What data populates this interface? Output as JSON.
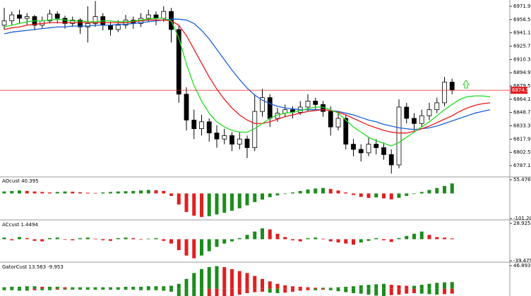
{
  "chart_data": [
    {
      "type": "candlestick",
      "ylim": [
        6774.9,
        6977.6
      ],
      "yticks": [
        {
          "value": 6971.9,
          "label": "6971.90"
        },
        {
          "value": 6956.5,
          "label": "6956.50"
        },
        {
          "value": 6941.1,
          "label": "6941.10"
        },
        {
          "value": 6925.7,
          "label": "6925.70"
        },
        {
          "value": 6910.3,
          "label": "6910.30"
        },
        {
          "value": 6894.9,
          "label": "6894.90"
        },
        {
          "value": 6879.5,
          "label": "6879.50"
        },
        {
          "value": 6864.1,
          "label": "6864.10"
        },
        {
          "value": 6848.7,
          "label": "6848.70"
        },
        {
          "value": 6833.3,
          "label": "6833.30"
        },
        {
          "value": 6817.9,
          "label": "6817.90"
        },
        {
          "value": 6802.5,
          "label": "6802.50"
        },
        {
          "value": 6787.1,
          "label": "6787.10"
        }
      ],
      "current_price": 6874.53,
      "up_color": "#ffffff",
      "down_color": "#000000",
      "ohlc": [
        [
          6950,
          6970,
          6945,
          6955
        ],
        [
          6955,
          6966,
          6950,
          6962
        ],
        [
          6962,
          6968,
          6952,
          6958
        ],
        [
          6958,
          6964,
          6950,
          6960
        ],
        [
          6960,
          6962,
          6944,
          6950
        ],
        [
          6950,
          6960,
          6946,
          6955
        ],
        [
          6955,
          6968,
          6952,
          6963
        ],
        [
          6963,
          6966,
          6952,
          6958
        ],
        [
          6958,
          6961,
          6946,
          6952
        ],
        [
          6952,
          6960,
          6948,
          6956
        ],
        [
          6956,
          6958,
          6940,
          6948
        ],
        [
          6948,
          6972,
          6930,
          6952
        ],
        [
          6952,
          6978,
          6948,
          6960
        ],
        [
          6960,
          6964,
          6944,
          6950
        ],
        [
          6950,
          6954,
          6938,
          6945
        ],
        [
          6945,
          6956,
          6942,
          6950
        ],
        [
          6950,
          6962,
          6946,
          6956
        ],
        [
          6956,
          6960,
          6946,
          6952
        ],
        [
          6952,
          6964,
          6948,
          6958
        ],
        [
          6958,
          6968,
          6954,
          6962
        ],
        [
          6962,
          6966,
          6950,
          6958
        ],
        [
          6958,
          6972,
          6954,
          6966
        ],
        [
          6966,
          6970,
          6930,
          6945
        ],
        [
          6945,
          6950,
          6860,
          6870
        ],
        [
          6870,
          6878,
          6828,
          6840
        ],
        [
          6840,
          6852,
          6818,
          6830
        ],
        [
          6830,
          6846,
          6822,
          6838
        ],
        [
          6838,
          6842,
          6815,
          6825
        ],
        [
          6825,
          6834,
          6808,
          6818
        ],
        [
          6818,
          6830,
          6812,
          6822
        ],
        [
          6822,
          6826,
          6804,
          6812
        ],
        [
          6812,
          6826,
          6806,
          6818
        ],
        [
          6818,
          6822,
          6796,
          6808
        ],
        [
          6808,
          6870,
          6804,
          6850
        ],
        [
          6850,
          6876,
          6844,
          6866
        ],
        [
          6866,
          6870,
          6832,
          6842
        ],
        [
          6842,
          6854,
          6838,
          6848
        ],
        [
          6848,
          6858,
          6844,
          6852
        ],
        [
          6852,
          6856,
          6842,
          6849
        ],
        [
          6849,
          6862,
          6846,
          6855
        ],
        [
          6855,
          6870,
          6850,
          6862
        ],
        [
          6862,
          6866,
          6852,
          6858
        ],
        [
          6858,
          6862,
          6844,
          6850
        ],
        [
          6850,
          6856,
          6822,
          6832
        ],
        [
          6832,
          6850,
          6828,
          6842
        ],
        [
          6842,
          6846,
          6806,
          6812
        ],
        [
          6812,
          6818,
          6798,
          6806
        ],
        [
          6806,
          6812,
          6792,
          6802
        ],
        [
          6802,
          6820,
          6798,
          6812
        ],
        [
          6812,
          6818,
          6800,
          6808
        ],
        [
          6808,
          6814,
          6794,
          6800
        ],
        [
          6800,
          6806,
          6778,
          6788
        ],
        [
          6788,
          6864,
          6784,
          6855
        ],
        [
          6855,
          6860,
          6836,
          6842
        ],
        [
          6842,
          6848,
          6828,
          6836
        ],
        [
          6836,
          6852,
          6832,
          6845
        ],
        [
          6845,
          6860,
          6840,
          6852
        ],
        [
          6852,
          6866,
          6848,
          6860
        ],
        [
          6860,
          6890,
          6856,
          6884
        ],
        [
          6884,
          6888,
          6870,
          6874.53
        ]
      ],
      "series": [
        {
          "color": "#1a5fd8",
          "values": [
            6940,
            6942,
            6943,
            6944,
            6945,
            6946,
            6947,
            6948,
            6948,
            6949,
            6949,
            6949,
            6950,
            6950,
            6950,
            6951,
            6951,
            6952,
            6953,
            6954,
            6955,
            6956,
            6957,
            6957,
            6956,
            6952,
            6944,
            6934,
            6922,
            6910,
            6898,
            6887,
            6877,
            6869,
            6863,
            6859,
            6856,
            6854,
            6853,
            6852,
            6852,
            6852,
            6852,
            6851,
            6850,
            6848,
            6846,
            6843,
            6840,
            6838,
            6835,
            6833,
            6831,
            6830,
            6829,
            6830,
            6831,
            6833,
            6836,
            6839,
            6842,
            6845,
            6848,
            6850,
            6852
          ]
        },
        {
          "color": "#e8191b",
          "values": [
            6945,
            6947,
            6948,
            6950,
            6951,
            6952,
            6953,
            6953,
            6953,
            6953,
            6953,
            6953,
            6953,
            6953,
            6953,
            6953,
            6953,
            6954,
            6955,
            6956,
            6956,
            6956,
            6955,
            6950,
            6938,
            6922,
            6906,
            6890,
            6876,
            6864,
            6854,
            6846,
            6840,
            6836,
            6836,
            6838,
            6841,
            6844,
            6846,
            6848,
            6850,
            6851,
            6852,
            6851,
            6849,
            6846,
            6842,
            6838,
            6834,
            6831,
            6828,
            6826,
            6825,
            6825,
            6827,
            6830,
            6833,
            6837,
            6841,
            6845,
            6850,
            6854,
            6857,
            6859,
            6860
          ]
        },
        {
          "color": "#22dd22",
          "values": [
            6948,
            6950,
            6952,
            6954,
            6955,
            6955,
            6956,
            6957,
            6956,
            6955,
            6955,
            6954,
            6954,
            6955,
            6955,
            6954,
            6954,
            6955,
            6956,
            6957,
            6958,
            6958,
            6955,
            6935,
            6905,
            6880,
            6862,
            6848,
            6838,
            6832,
            6828,
            6826,
            6826,
            6830,
            6836,
            6842,
            6846,
            6848,
            6849,
            6851,
            6853,
            6855,
            6855,
            6852,
            6848,
            6840,
            6832,
            6826,
            6820,
            6816,
            6813,
            6810,
            6814,
            6820,
            6826,
            6832,
            6838,
            6845,
            6852,
            6858,
            6864,
            6867,
            6868,
            6868,
            6867
          ]
        }
      ]
    },
    {
      "type": "histogram",
      "title": "AOcust 40.395",
      "ylim": [
        -101.205,
        55.476
      ],
      "yticks": [
        55.476,
        -101.205
      ],
      "up_color": "#1c8c1c",
      "down_color": "#e02020",
      "values": [
        8,
        10,
        12,
        10,
        8,
        6,
        4,
        6,
        8,
        7,
        5,
        3,
        2,
        4,
        6,
        8,
        9,
        10,
        12,
        14,
        13,
        10,
        -10,
        -45,
        -75,
        -90,
        -95,
        -92,
        -85,
        -78,
        -70,
        -60,
        -48,
        -35,
        -25,
        -15,
        -8,
        -2,
        4,
        10,
        16,
        20,
        22,
        18,
        12,
        4,
        -6,
        -14,
        -18,
        -16,
        -20,
        -24,
        -18,
        -10,
        -2,
        6,
        14,
        22,
        30,
        40.395
      ]
    },
    {
      "type": "histogram",
      "title": "ACcust 1.4494",
      "ylim": [
        -39.4791,
        28.9253
      ],
      "yticks": [
        28.9253,
        -39.4791
      ],
      "up_color": "#1c8c1c",
      "down_color": "#e02020",
      "values": [
        3,
        -2,
        4,
        2,
        -3,
        -4,
        2,
        3,
        -1,
        -2,
        2,
        3,
        1,
        -2,
        -3,
        2,
        3,
        2,
        -1,
        1,
        2,
        -3,
        -8,
        -20,
        -30,
        -35,
        -30,
        -22,
        -14,
        -8,
        -4,
        2,
        8,
        14,
        20,
        18,
        10,
        4,
        -2,
        -4,
        2,
        3,
        1,
        -4,
        -6,
        -8,
        -10,
        -6,
        -3,
        2,
        -2,
        -5,
        2,
        6,
        10,
        14,
        8,
        4,
        3,
        1.4494
      ]
    },
    {
      "type": "gator",
      "title": "GatorCust 13.563 -9.953",
      "ylim": [
        -32,
        46.893
      ],
      "yticks": [
        46.893
      ],
      "up_color": "#1c8c1c",
      "down_color": "#e02020",
      "upper": [
        3,
        4,
        4,
        5,
        5,
        4,
        4,
        4,
        3,
        3,
        3,
        3,
        3,
        3,
        3,
        3,
        4,
        4,
        4,
        5,
        5,
        5,
        6,
        10,
        20,
        32,
        40,
        44,
        46,
        44,
        40,
        36,
        32,
        26,
        20,
        15,
        10,
        7,
        5,
        4,
        3,
        2,
        2,
        2,
        3,
        4,
        5,
        7,
        8,
        9,
        10,
        8,
        7,
        6,
        6,
        8,
        10,
        12,
        13,
        13.563
      ],
      "lower": [
        -3,
        -3,
        -4,
        -4,
        -3,
        -3,
        -3,
        -2,
        -2,
        -2,
        -2,
        -2,
        -2,
        -2,
        -2,
        -2,
        -2,
        -2,
        -3,
        -3,
        -3,
        -4,
        -6,
        -15,
        -25,
        -30,
        -30,
        -28,
        -24,
        -20,
        -16,
        -12,
        -9,
        -7,
        -6,
        -8,
        -9,
        -8,
        -6,
        -4,
        -3,
        -3,
        -2,
        -3,
        -5,
        -7,
        -9,
        -10,
        -12,
        -14,
        -15,
        -13,
        -12,
        -10,
        -9,
        -10,
        -11,
        -12,
        -11,
        -9.953
      ]
    }
  ]
}
